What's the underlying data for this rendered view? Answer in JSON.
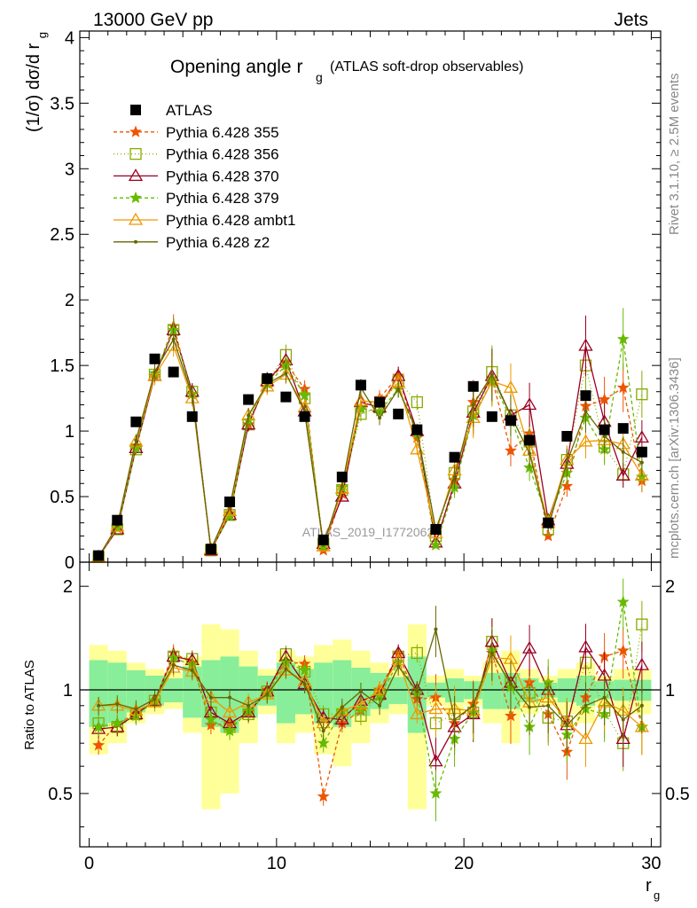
{
  "header": {
    "left": "13000 GeV pp",
    "right": "Jets",
    "title_main": "Opening angle r",
    "title_sub": "g",
    "title_note": "(ATLAS soft-drop observables)",
    "watermark": "ATLAS_2019_I1772062",
    "side_top": "Rivet 3.1.10, ≥ 2.5M events",
    "side_bottom": "mcplots.cern.ch [arXiv:1306.3436]"
  },
  "chart_data": [
    {
      "type": "line",
      "title": "Opening angle r_g (ATLAS soft-drop observables)",
      "xlabel": "r_g",
      "ylabel": "(1/σ) dσ/d r_g",
      "xlim": [
        -0.5,
        30.5
      ],
      "ylim": [
        0,
        4.05
      ],
      "x_ticks": [
        0,
        10,
        20,
        30
      ],
      "y_ticks": [
        "0",
        "0.5",
        "1",
        "1.5",
        "2",
        "2.5",
        "3",
        "3.5",
        "4"
      ],
      "legend_position": "top-left",
      "x": [
        0.5,
        1.5,
        2.5,
        3.5,
        4.5,
        5.5,
        6.5,
        7.5,
        8.5,
        9.5,
        10.5,
        11.5,
        12.5,
        13.5,
        14.5,
        15.5,
        16.5,
        17.5,
        18.5,
        19.5,
        20.5,
        21.5,
        22.5,
        23.5,
        24.5,
        25.5,
        26.5,
        27.5,
        28.5,
        29.5
      ],
      "data": {
        "name": "ATLAS",
        "values": [
          0.05,
          0.32,
          1.07,
          1.55,
          1.45,
          1.11,
          0.1,
          0.46,
          1.24,
          1.4,
          1.26,
          1.11,
          0.17,
          0.65,
          1.35,
          1.22,
          1.13,
          1.01,
          0.25,
          0.8,
          1.34,
          1.11,
          1.08,
          0.93,
          0.3,
          0.96,
          1.27,
          1.01,
          1.02,
          0.84
        ]
      },
      "series": [
        {
          "name": "Pythia 6.428 355",
          "color": "#ee5500",
          "dash": "4,3",
          "marker": "star",
          "values": [
            0.04,
            0.26,
            0.88,
            1.42,
            1.8,
            1.28,
            0.09,
            0.37,
            1.05,
            1.38,
            1.52,
            1.32,
            0.09,
            0.52,
            1.18,
            1.25,
            1.42,
            0.95,
            0.13,
            0.62,
            1.22,
            1.4,
            0.85,
            0.98,
            0.2,
            0.58,
            1.19,
            1.24,
            1.33,
            0.62
          ]
        },
        {
          "name": "Pythia 6.428 356",
          "color": "#88aa00",
          "dash": "1,3",
          "marker": "open-square",
          "values": [
            0.04,
            0.25,
            0.86,
            1.43,
            1.77,
            1.3,
            0.09,
            0.36,
            1.05,
            1.38,
            1.58,
            1.25,
            0.14,
            0.55,
            1.13,
            1.18,
            1.38,
            1.22,
            0.2,
            0.68,
            1.15,
            1.45,
            1.12,
            0.92,
            0.25,
            0.78,
            1.5,
            0.88,
            0.67,
            1.28
          ]
        },
        {
          "name": "Pythia 6.428 370",
          "color": "#990022",
          "dash": "",
          "marker": "open-triangle",
          "values": [
            0.04,
            0.25,
            0.87,
            1.42,
            1.77,
            1.3,
            0.09,
            0.36,
            1.05,
            1.38,
            1.54,
            1.15,
            0.14,
            0.5,
            1.22,
            1.18,
            1.42,
            1.0,
            0.15,
            0.6,
            1.14,
            1.42,
            1.12,
            1.2,
            0.32,
            0.75,
            1.65,
            1.07,
            0.66,
            0.95
          ]
        },
        {
          "name": "Pythia 6.428 379",
          "color": "#66bb00",
          "dash": "4,3",
          "marker": "star",
          "values": [
            0.04,
            0.26,
            0.87,
            1.44,
            1.77,
            1.28,
            0.1,
            0.35,
            1.08,
            1.36,
            1.5,
            1.27,
            0.12,
            0.57,
            1.17,
            1.15,
            1.32,
            0.98,
            0.13,
            0.57,
            1.12,
            1.38,
            1.1,
            0.72,
            0.32,
            0.68,
            1.1,
            0.86,
            1.7,
            0.65
          ]
        },
        {
          "name": "Pythia 6.428 ambt1",
          "color": "#ee9900",
          "dash": "",
          "marker": "open-triangle",
          "values": [
            0.04,
            0.27,
            0.92,
            1.42,
            1.65,
            1.25,
            0.1,
            0.39,
            1.12,
            1.34,
            1.43,
            1.18,
            0.12,
            0.56,
            1.23,
            1.22,
            1.37,
            0.86,
            0.22,
            0.7,
            1.1,
            1.38,
            1.33,
            0.85,
            0.3,
            0.78,
            0.92,
            0.93,
            0.9,
            0.66
          ]
        },
        {
          "name": "Pythia 6.428 z2",
          "color": "#666600",
          "dash": "",
          "marker": "dot",
          "values": [
            0.04,
            0.28,
            0.93,
            1.45,
            1.7,
            1.27,
            0.1,
            0.42,
            1.12,
            1.36,
            1.44,
            1.15,
            0.13,
            0.58,
            1.33,
            1.1,
            1.32,
            1.0,
            0.25,
            0.65,
            1.2,
            1.43,
            1.12,
            0.83,
            0.27,
            0.76,
            1.15,
            0.96,
            0.84,
            0.76
          ]
        }
      ]
    },
    {
      "type": "line",
      "title": "",
      "xlabel": "r_g",
      "ylabel": "Ratio to ATLAS",
      "xlim": [
        -0.5,
        30.5
      ],
      "ylim": [
        0.35,
        2.35
      ],
      "y_ticks": [
        "0.5",
        "1",
        "2"
      ],
      "reference_line": 1,
      "x": [
        0.5,
        1.5,
        2.5,
        3.5,
        4.5,
        5.5,
        6.5,
        7.5,
        8.5,
        9.5,
        10.5,
        11.5,
        12.5,
        13.5,
        14.5,
        15.5,
        16.5,
        17.5,
        18.5,
        19.5,
        20.5,
        21.5,
        22.5,
        23.5,
        24.5,
        25.5,
        26.5,
        27.5,
        28.5,
        29.5
      ],
      "band_outer_halfwidth": [
        0.35,
        0.3,
        0.2,
        0.15,
        0.12,
        0.25,
        0.55,
        0.5,
        0.3,
        0.15,
        0.3,
        0.25,
        0.35,
        0.4,
        0.3,
        0.2,
        0.15,
        0.55,
        0.1,
        0.15,
        0.1,
        0.2,
        0.3,
        0.15,
        0.1,
        0.15,
        0.2,
        0.1,
        0.15,
        0.15
      ],
      "band_inner_halfwidth": [
        0.22,
        0.2,
        0.14,
        0.1,
        0.08,
        0.17,
        0.22,
        0.25,
        0.17,
        0.1,
        0.2,
        0.15,
        0.2,
        0.22,
        0.16,
        0.12,
        0.09,
        0.25,
        0.05,
        0.08,
        0.06,
        0.12,
        0.12,
        0.08,
        0.05,
        0.08,
        0.1,
        0.06,
        0.07,
        0.07
      ],
      "series": [
        {
          "name": "Pythia 6.428 355",
          "values": [
            0.69,
            0.8,
            0.85,
            0.93,
            1.28,
            1.2,
            0.79,
            0.8,
            0.86,
            1.0,
            1.21,
            1.19,
            0.49,
            0.8,
            0.87,
            1.0,
            1.27,
            0.94,
            0.95,
            0.8,
            0.91,
            1.28,
            0.84,
            1.05,
            0.85,
            0.66,
            0.95,
            1.25,
            1.3,
            0.78
          ]
        },
        {
          "name": "Pythia 6.428 356",
          "values": [
            0.8,
            0.78,
            0.85,
            0.93,
            1.25,
            1.23,
            0.86,
            0.78,
            0.85,
            0.99,
            1.27,
            1.13,
            0.85,
            0.85,
            0.84,
            0.97,
            1.25,
            1.28,
            0.8,
            0.85,
            0.86,
            1.38,
            1.05,
            0.98,
            0.83,
            0.81,
            1.2,
            0.87,
            0.7,
            1.55
          ]
        },
        {
          "name": "Pythia 6.428 370",
          "values": [
            0.77,
            0.78,
            0.85,
            0.93,
            1.25,
            1.22,
            0.86,
            0.8,
            0.86,
            0.99,
            1.25,
            1.04,
            0.83,
            0.82,
            0.93,
            0.97,
            1.28,
            1.0,
            0.62,
            0.78,
            0.85,
            1.38,
            1.05,
            1.32,
            1.0,
            0.79,
            1.33,
            1.1,
            0.72,
            1.18
          ]
        },
        {
          "name": "Pythia 6.428 379",
          "values": [
            0.78,
            0.8,
            0.84,
            0.93,
            1.24,
            1.18,
            0.82,
            0.76,
            0.87,
            0.98,
            1.2,
            1.14,
            0.7,
            0.87,
            0.88,
            0.96,
            1.2,
            0.98,
            0.5,
            0.72,
            0.86,
            1.3,
            1.02,
            0.78,
            1.05,
            0.74,
            0.88,
            0.85,
            1.8,
            0.78
          ]
        },
        {
          "name": "Pythia 6.428 ambt1",
          "values": [
            0.9,
            0.9,
            0.87,
            0.92,
            1.16,
            1.13,
            0.95,
            0.86,
            0.92,
            0.97,
            1.14,
            1.06,
            0.8,
            0.87,
            0.91,
            1.0,
            1.22,
            0.85,
            0.88,
            0.88,
            0.87,
            1.24,
            1.23,
            0.92,
            0.95,
            0.81,
            0.72,
            0.92,
            0.87,
            0.78
          ]
        },
        {
          "name": "Pythia 6.428 z2",
          "values": [
            0.9,
            0.91,
            0.88,
            0.94,
            1.18,
            1.14,
            0.95,
            0.95,
            0.9,
            0.97,
            1.15,
            1.04,
            0.76,
            0.89,
            0.99,
            0.9,
            1.17,
            0.99,
            1.5,
            0.82,
            0.9,
            1.28,
            1.04,
            0.89,
            0.9,
            0.79,
            0.9,
            0.95,
            0.82,
            0.9
          ]
        }
      ]
    }
  ]
}
